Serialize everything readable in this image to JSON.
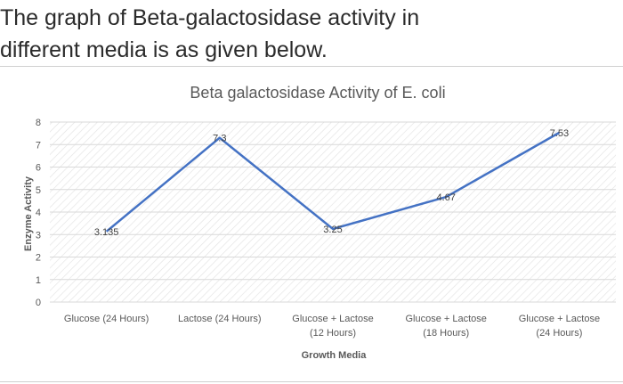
{
  "heading": {
    "line1": "The graph of Beta-galactosidase activity in",
    "line2": "different media is as given below."
  },
  "chart_data": {
    "type": "line",
    "title": "Beta galactosidase Activity of E. coli",
    "xlabel": "Growth Media",
    "ylabel": "Enzyme Activity",
    "categories": [
      [
        "Glucose (24 Hours)"
      ],
      [
        "Lactose (24 Hours)"
      ],
      [
        "Glucose + Lactose",
        "(12 Hours)"
      ],
      [
        "Glucose + Lactose",
        "(18 Hours)"
      ],
      [
        "Glucose + Lactose",
        "(24 Hours)"
      ]
    ],
    "series": [
      {
        "values": [
          3.135,
          7.3,
          3.25,
          4.67,
          7.53
        ],
        "labels": [
          "3.135",
          "7.3",
          "3.25",
          "4.67",
          "7.53"
        ]
      }
    ],
    "ylim": [
      0,
      8
    ],
    "yticks": [
      "0",
      "1",
      "2",
      "3",
      "4",
      "5",
      "6",
      "7",
      "8"
    ],
    "grid": true,
    "line_color": "#4472c4",
    "grid_color": "#d9d9d9"
  }
}
